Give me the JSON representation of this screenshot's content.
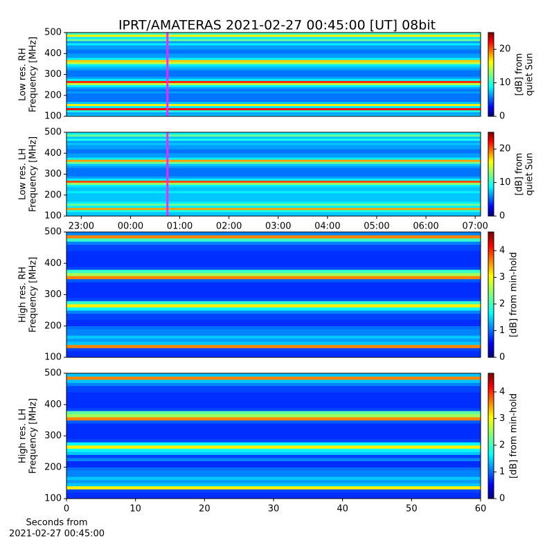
{
  "chart_data": [
    {
      "type": "heatmap",
      "title": "IPRT/AMATERAS 2021-02-27 00:45:00 [UT]   08bit",
      "ylabel": [
        "Low res. RH",
        "Frequency [MHz]"
      ],
      "colorbar_label": [
        "[dB] from",
        "quiet Sun"
      ],
      "colormap": "jet",
      "zlim": [
        0,
        25
      ],
      "zticks": [
        0,
        10,
        20
      ],
      "ylim": [
        100,
        500
      ],
      "yticks": [
        100,
        200,
        300,
        400,
        500
      ],
      "xlim": [
        22.7,
        31.11
      ],
      "markers": [
        {
          "x": 24.75,
          "color": "#ff22ff"
        }
      ],
      "values": [
        8,
        7,
        10,
        22,
        9,
        16,
        8,
        6,
        6,
        6,
        6,
        7,
        6,
        7,
        9,
        14,
        21,
        9,
        7,
        6,
        6,
        6,
        7,
        8,
        9,
        14,
        17,
        9,
        7,
        7,
        6,
        6,
        7,
        7,
        9,
        7,
        12,
        9,
        16,
        11
      ]
    },
    {
      "type": "heatmap",
      "ylabel": [
        "Low res. LH",
        "Frequency [MHz]"
      ],
      "colorbar_label": [
        "[dB] from",
        "quiet Sun"
      ],
      "colormap": "jet",
      "zlim": [
        0,
        25
      ],
      "zticks": [
        0,
        10,
        20
      ],
      "ylim": [
        100,
        500
      ],
      "yticks": [
        100,
        200,
        300,
        400,
        500
      ],
      "xlim": [
        22.7,
        31.11
      ],
      "xticks": [
        {
          "value": 23,
          "label": "23:00"
        },
        {
          "value": 24,
          "label": "00:00"
        },
        {
          "value": 25,
          "label": "01:00"
        },
        {
          "value": 26,
          "label": "02:00"
        },
        {
          "value": 27,
          "label": "03:00"
        },
        {
          "value": 28,
          "label": "04:00"
        },
        {
          "value": 29,
          "label": "05:00"
        },
        {
          "value": 30,
          "label": "06:00"
        },
        {
          "value": 31,
          "label": "07:00"
        }
      ],
      "markers": [
        {
          "x": 24.75,
          "color": "#ff22ff"
        }
      ],
      "values": [
        8,
        8,
        10,
        18,
        9,
        12,
        9,
        8,
        8,
        8,
        8,
        9,
        8,
        8,
        9,
        13,
        20,
        9,
        7,
        6,
        6,
        6,
        6,
        7,
        8,
        12,
        18,
        9,
        7,
        7,
        6,
        6,
        7,
        7,
        8,
        7,
        10,
        8,
        12,
        9
      ]
    },
    {
      "type": "heatmap",
      "ylabel": [
        "High res. RH",
        "Frequency [MHz]"
      ],
      "colorbar_label": [
        "[dB] from min-hold"
      ],
      "colormap": "jet",
      "zlim": [
        0,
        4.7
      ],
      "zticks": [
        0,
        1,
        2,
        3,
        4
      ],
      "ylim": [
        100,
        500
      ],
      "yticks": [
        100,
        200,
        300,
        400,
        500
      ],
      "xlim": [
        0,
        60
      ],
      "values": [
        0.8,
        0.8,
        0.9,
        3.5,
        1.5,
        1.3,
        1.5,
        1.2,
        1.2,
        1.1,
        0.8,
        0.8,
        0.9,
        0.9,
        1.2,
        1.8,
        3.0,
        2.0,
        0.9,
        0.8,
        0.8,
        0.8,
        0.8,
        0.8,
        1.0,
        3.5,
        2.5,
        2.0,
        0.9,
        0.8,
        0.8,
        0.8,
        0.8,
        0.8,
        0.9,
        0.9,
        1.2,
        2.0,
        3.5,
        1.2
      ]
    },
    {
      "type": "heatmap",
      "ylabel": [
        "High res. LH",
        "Frequency [MHz]"
      ],
      "colorbar_label": [
        "[dB] from min-hold"
      ],
      "xlabel": [
        "Seconds from",
        "2021-02-27 00:45:00"
      ],
      "colormap": "jet",
      "zlim": [
        0,
        4.7
      ],
      "zticks": [
        0,
        1,
        2,
        3,
        4
      ],
      "ylim": [
        100,
        500
      ],
      "yticks": [
        100,
        200,
        300,
        400,
        500
      ],
      "xlim": [
        0,
        60
      ],
      "xticks": [
        0,
        10,
        20,
        30,
        40,
        50,
        60
      ],
      "values": [
        0.8,
        0.8,
        0.9,
        3.0,
        1.5,
        1.3,
        1.5,
        1.2,
        1.2,
        1.1,
        0.8,
        0.8,
        1.2,
        0.9,
        1.5,
        1.8,
        3.0,
        1.8,
        0.9,
        0.8,
        0.8,
        0.8,
        0.8,
        0.8,
        1.0,
        3.5,
        2.5,
        2.2,
        0.9,
        0.8,
        0.8,
        0.8,
        0.8,
        0.8,
        0.9,
        0.9,
        1.2,
        1.5,
        3.5,
        1.5
      ]
    }
  ]
}
